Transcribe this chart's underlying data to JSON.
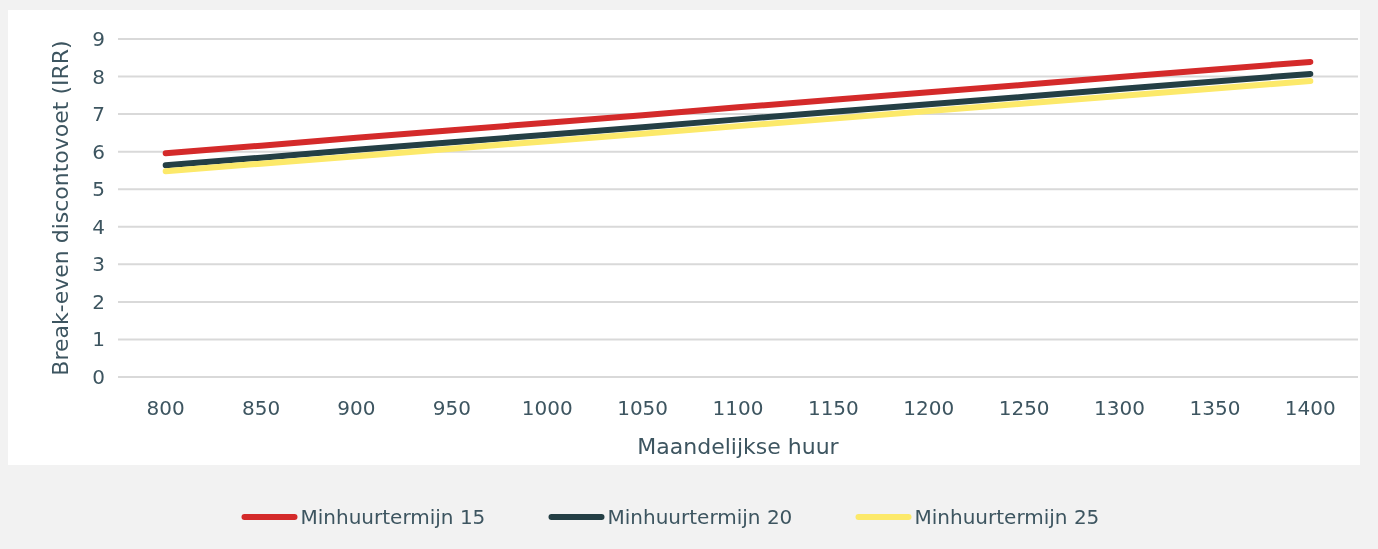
{
  "chart_data": {
    "type": "line",
    "xlabel": "Maandelijkse huur",
    "ylabel": "Break-even discontovoet (IRR)",
    "categories": [
      "800",
      "850",
      "900",
      "950",
      "1000",
      "1050",
      "1100",
      "1150",
      "1200",
      "1250",
      "1300",
      "1350",
      "1400"
    ],
    "series": [
      {
        "name": "Minhuurtermijn 15",
        "color": "#d42a2a",
        "values": [
          5.96,
          6.16,
          6.37,
          6.57,
          6.77,
          6.97,
          7.18,
          7.38,
          7.58,
          7.78,
          7.99,
          8.19,
          8.39
        ]
      },
      {
        "name": "Minhuurtermijn 20",
        "color": "#243f45",
        "values": [
          5.64,
          5.84,
          6.05,
          6.25,
          6.45,
          6.65,
          6.86,
          7.06,
          7.26,
          7.46,
          7.67,
          7.87,
          8.07
        ]
      },
      {
        "name": "Minhuurtermijn 25",
        "color": "#fce96a",
        "values": [
          5.48,
          5.68,
          5.88,
          6.08,
          6.28,
          6.48,
          6.68,
          6.88,
          7.08,
          7.28,
          7.48,
          7.68,
          7.88
        ]
      }
    ],
    "ylim": [
      0,
      9
    ],
    "yticks": [
      0,
      1,
      2,
      3,
      4,
      5,
      6,
      7,
      8,
      9
    ],
    "grid": "y",
    "legend": "bottom",
    "marker": "none",
    "line_style": "solid"
  }
}
